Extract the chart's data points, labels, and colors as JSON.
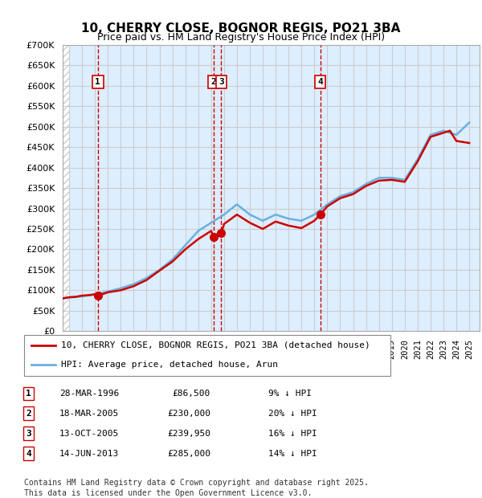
{
  "title": "10, CHERRY CLOSE, BOGNOR REGIS, PO21 3BA",
  "subtitle": "Price paid vs. HM Land Registry's House Price Index (HPI)",
  "legend_line1": "10, CHERRY CLOSE, BOGNOR REGIS, PO21 3BA (detached house)",
  "legend_line2": "HPI: Average price, detached house, Arun",
  "footnote1": "Contains HM Land Registry data © Crown copyright and database right 2025.",
  "footnote2": "This data is licensed under the Open Government Licence v3.0.",
  "transactions": [
    {
      "num": 1,
      "date": "28-MAR-1996",
      "price": "£86,500",
      "pct": "9% ↓ HPI",
      "year": 1996.23
    },
    {
      "num": 2,
      "date": "18-MAR-2005",
      "price": "£230,000",
      "pct": "20% ↓ HPI",
      "year": 2005.21
    },
    {
      "num": 3,
      "date": "13-OCT-2005",
      "price": "£239,950",
      "pct": "16% ↓ HPI",
      "year": 2005.79
    },
    {
      "num": 4,
      "date": "14-JUN-2013",
      "price": "£285,000",
      "pct": "14% ↓ HPI",
      "year": 2013.45
    }
  ],
  "hpi_color": "#6ab0de",
  "paid_color": "#cc0000",
  "vline_color": "#cc0000",
  "grid_color": "#cccccc",
  "bg_plot": "#ddeeff",
  "bg_hatch": "#e8e8e8",
  "hatch_color": "#cccccc",
  "ylim": [
    0,
    700000
  ],
  "yticks": [
    0,
    50000,
    100000,
    150000,
    200000,
    250000,
    300000,
    350000,
    400000,
    450000,
    500000,
    550000,
    600000,
    650000,
    700000
  ],
  "xlim_start": 1993.5,
  "xlim_end": 2025.8,
  "hpi_years": [
    1993,
    1994,
    1995,
    1996,
    1997,
    1998,
    1999,
    2000,
    2001,
    2002,
    2003,
    2004,
    2005,
    2006,
    2007,
    2008,
    2009,
    2010,
    2011,
    2012,
    2013,
    2014,
    2015,
    2016,
    2017,
    2018,
    2019,
    2020,
    2021,
    2022,
    2023,
    2024,
    2025
  ],
  "hpi_values": [
    78000,
    82000,
    85000,
    90000,
    97000,
    105000,
    115000,
    130000,
    150000,
    175000,
    210000,
    245000,
    265000,
    285000,
    310000,
    285000,
    270000,
    285000,
    275000,
    270000,
    285000,
    310000,
    330000,
    340000,
    360000,
    375000,
    375000,
    370000,
    420000,
    480000,
    490000,
    480000,
    510000
  ],
  "paid_years": [
    1993.5,
    1994,
    1994.5,
    1995,
    1995.5,
    1996,
    1996.23,
    1997,
    1998,
    1999,
    2000,
    2001,
    2002,
    2003,
    2004,
    2005,
    2005.21,
    2005.5,
    2005.79,
    2006,
    2007,
    2008,
    2009,
    2010,
    2011,
    2012,
    2013,
    2013.45,
    2014,
    2015,
    2016,
    2017,
    2018,
    2019,
    2020,
    2021,
    2022,
    2023,
    2023.5,
    2024,
    2025
  ],
  "paid_values": [
    80000,
    83000,
    84000,
    87000,
    88000,
    90000,
    86500,
    95000,
    100000,
    110000,
    125000,
    148000,
    170000,
    200000,
    225000,
    245000,
    230000,
    238000,
    239950,
    262000,
    285000,
    265000,
    250000,
    268000,
    258000,
    252000,
    270000,
    285000,
    305000,
    325000,
    335000,
    355000,
    368000,
    370000,
    365000,
    415000,
    475000,
    485000,
    490000,
    465000,
    460000
  ]
}
